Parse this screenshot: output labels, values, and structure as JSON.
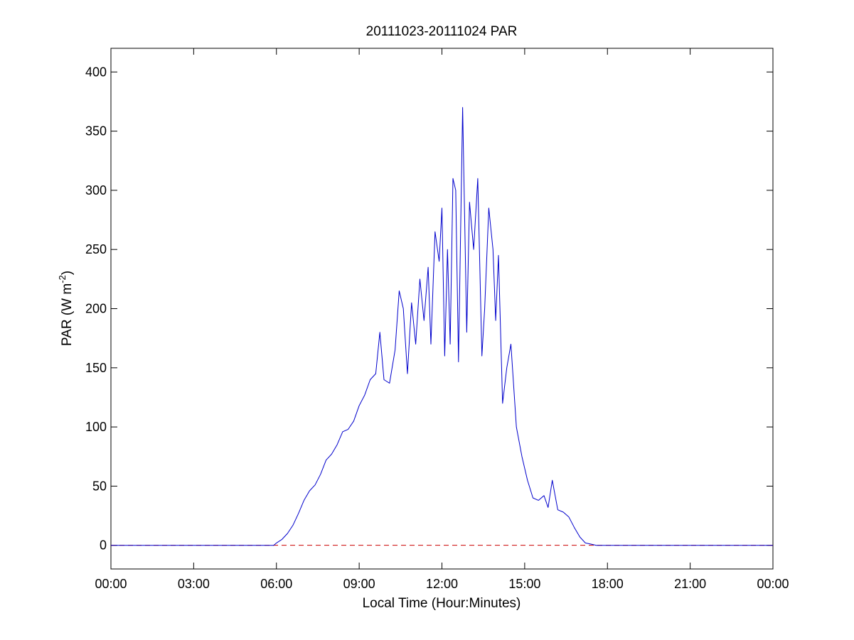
{
  "chart_data": {
    "type": "line",
    "title": "20111023-20111024 PAR",
    "xlabel": "Local Time (Hour:Minutes)",
    "ylabel": {
      "base": "PAR (W m",
      "sup": "-2",
      "close": ")"
    },
    "xlim": [
      0,
      24
    ],
    "ylim": [
      -20,
      420
    ],
    "x_ticks": [
      0,
      3,
      6,
      9,
      12,
      15,
      18,
      21,
      24
    ],
    "x_tick_labels": [
      "00:00",
      "03:00",
      "06:00",
      "09:00",
      "12:00",
      "15:00",
      "18:00",
      "21:00",
      "00:00"
    ],
    "y_ticks": [
      0,
      50,
      100,
      150,
      200,
      250,
      300,
      350,
      400
    ],
    "y_tick_labels": [
      "0",
      "50",
      "100",
      "150",
      "200",
      "250",
      "300",
      "350",
      "400"
    ],
    "grid": false,
    "reference_line": {
      "y": 0,
      "style": "dashed",
      "color": "#cc0000"
    },
    "series": [
      {
        "color": "#0000cc",
        "x": [
          0,
          5.9,
          6.0,
          6.2,
          6.4,
          6.6,
          6.8,
          7.0,
          7.2,
          7.4,
          7.6,
          7.8,
          8.0,
          8.2,
          8.4,
          8.6,
          8.8,
          9.0,
          9.2,
          9.4,
          9.6,
          9.75,
          9.9,
          10.1,
          10.3,
          10.45,
          10.6,
          10.75,
          10.9,
          11.05,
          11.2,
          11.35,
          11.5,
          11.6,
          11.75,
          11.9,
          12.0,
          12.1,
          12.2,
          12.3,
          12.4,
          12.5,
          12.6,
          12.75,
          12.9,
          13.0,
          13.15,
          13.3,
          13.45,
          13.55,
          13.7,
          13.85,
          13.95,
          14.05,
          14.2,
          14.35,
          14.5,
          14.7,
          14.9,
          15.1,
          15.3,
          15.5,
          15.7,
          15.85,
          16.0,
          16.2,
          16.4,
          16.6,
          16.8,
          17.0,
          17.2,
          17.4,
          17.6,
          24
        ],
        "y": [
          0,
          0,
          2,
          5,
          10,
          17,
          27,
          38,
          46,
          51,
          60,
          72,
          77,
          85,
          96,
          98,
          105,
          118,
          127,
          140,
          145,
          180,
          140,
          137,
          165,
          215,
          200,
          145,
          205,
          170,
          225,
          190,
          235,
          170,
          265,
          240,
          285,
          160,
          250,
          170,
          310,
          300,
          155,
          370,
          180,
          290,
          250,
          310,
          160,
          200,
          285,
          250,
          190,
          245,
          120,
          150,
          170,
          100,
          75,
          55,
          40,
          38,
          42,
          32,
          55,
          30,
          28,
          24,
          15,
          7,
          2,
          1,
          0,
          0
        ]
      }
    ]
  }
}
